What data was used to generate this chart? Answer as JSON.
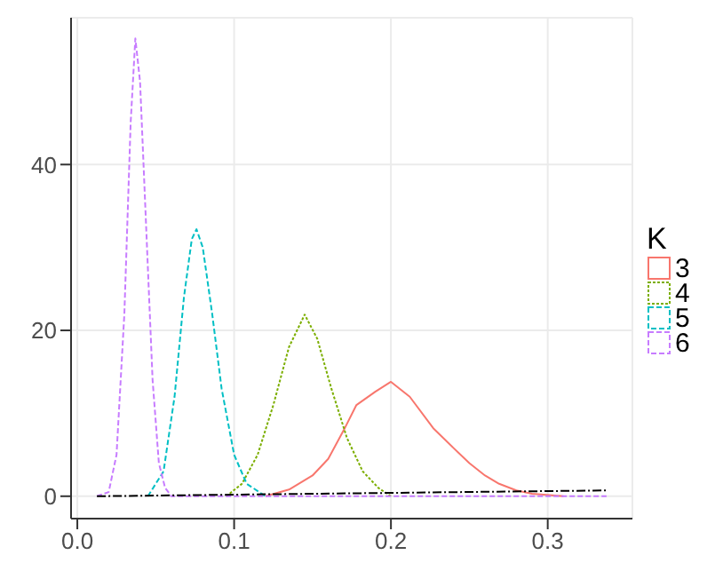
{
  "chart_data": {
    "type": "line",
    "legend_title": "K",
    "legend": "right",
    "grid": true,
    "xlim": [
      -0.004,
      0.354
    ],
    "xticks": [
      {
        "value": 0,
        "label": "0.0"
      },
      0.1,
      0.2,
      0.3
    ],
    "ylim": [
      -2.7,
      57.7
    ],
    "yticks": [
      0,
      20,
      40
    ],
    "series": [
      {
        "name": "3",
        "color": "#f8766d",
        "line_style": "solid",
        "x": [
          0.12,
          0.135,
          0.15,
          0.16,
          0.17,
          0.178,
          0.19,
          0.2,
          0.212,
          0.227,
          0.24,
          0.25,
          0.26,
          0.269,
          0.28,
          0.29,
          0.31
        ],
        "values": [
          0,
          0.8,
          2.5,
          4.5,
          8,
          11,
          12.6,
          13.8,
          12,
          8.2,
          5.8,
          4,
          2.5,
          1.5,
          0.7,
          0.3,
          0
        ]
      },
      {
        "name": "4",
        "color": "#7cae00",
        "line_style": "dotted",
        "x": [
          0.095,
          0.105,
          0.115,
          0.125,
          0.135,
          0.145,
          0.153,
          0.162,
          0.172,
          0.182,
          0.192,
          0.2
        ],
        "values": [
          0,
          1.5,
          5,
          11,
          18,
          21.9,
          19,
          13,
          7,
          3,
          1,
          0
        ]
      },
      {
        "name": "5",
        "color": "#00bfc4",
        "line_style": "dashed",
        "x": [
          0.045,
          0.055,
          0.062,
          0.068,
          0.073,
          0.076,
          0.08,
          0.086,
          0.092,
          0.1,
          0.108,
          0.12
        ],
        "values": [
          0,
          3,
          12,
          24,
          31,
          32.2,
          30,
          22,
          13,
          5,
          1.5,
          0
        ]
      },
      {
        "name": "6",
        "color": "#c77cff",
        "line_style": "dashed",
        "x": [
          0.0125,
          0.02,
          0.025,
          0.03,
          0.034,
          0.037,
          0.04,
          0.044,
          0.048,
          0.052,
          0.056,
          0.06,
          0.3375
        ],
        "values": [
          0,
          0.5,
          5,
          22,
          45,
          55.2,
          50,
          32,
          14,
          4,
          1,
          0,
          0
        ]
      },
      {
        "color": "#000000",
        "line_style": "dashed",
        "x": [
          0.0125,
          0.3375
        ],
        "values": [
          0,
          0.7
        ]
      }
    ]
  }
}
